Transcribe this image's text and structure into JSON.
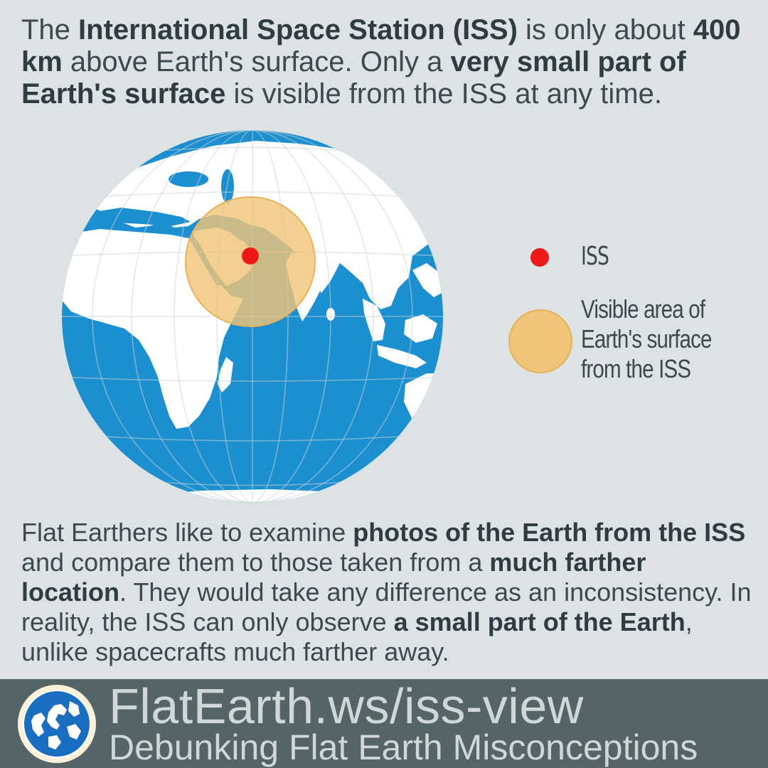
{
  "intro": {
    "p1": "The ",
    "b1": "International Space Station (ISS)",
    "p2": " is only about ",
    "b2": "400 km",
    "p3": " above Earth's surface. Only a ",
    "b3": "very small part of Earth's surface",
    "p4": " is visible from the ISS at any time."
  },
  "legend": {
    "iss_label": "ISS",
    "area_label": "Visible area of Earth's surface from the ISS"
  },
  "body": {
    "p1": "Flat Earthers like to examine ",
    "b1": "photos of the Earth from the ISS",
    "p2": " and compare them to those taken from a ",
    "b2": "much farther location",
    "p3": ". They would take any difference as an inconsistency. In reality, the ISS can only observe ",
    "b3": "a small part of the Earth",
    "p4": ", unlike spacecrafts much farther away."
  },
  "footer": {
    "url": "FlatEarth.ws/iss-view",
    "tagline": "Debunking Flat Earth Misconceptions"
  },
  "colors": {
    "ocean": "#1b8fd0",
    "land": "#ffffff",
    "iss_marker": "#ee1a1a",
    "visible_area": "#f0c579",
    "footer_bg": "#546467"
  }
}
